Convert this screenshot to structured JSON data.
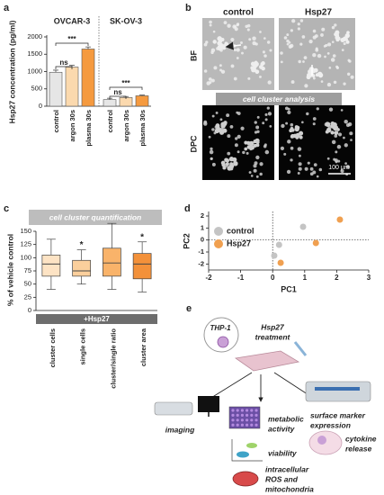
{
  "chart_data": [
    {
      "type": "bar",
      "panel": "a",
      "y_label": "Hsp27 concentration (pg/ml)",
      "groups": [
        "OVCAR-3",
        "SK-OV-3"
      ],
      "categories": [
        "control",
        "argon 30s",
        "plasma 30s",
        "control",
        "argon 30s",
        "plasma 30s"
      ],
      "values": [
        980,
        1130,
        1650,
        190,
        250,
        300
      ],
      "errors": [
        60,
        50,
        60,
        40,
        30,
        20
      ],
      "colors": [
        "#e6e6e6",
        "#fbd9ae",
        "#f59a3f",
        "#e6e6e6",
        "#fbd9ae",
        "#f59a3f"
      ],
      "annotations": [
        "ns",
        "***",
        "ns",
        "***"
      ],
      "ylim": [
        0,
        2000
      ],
      "yticks": [
        0,
        500,
        1000,
        1500,
        2000
      ]
    },
    {
      "type": "box",
      "panel": "c",
      "banner": "cell cluster quantification",
      "y_label": "% of vehicle control",
      "treatment_label": "+Hsp27",
      "categories": [
        "cluster cells",
        "single cells",
        "cluster/single ratio",
        "cluster area"
      ],
      "values": [
        {
          "min": 40,
          "q1": 65,
          "median": 88,
          "q3": 105,
          "max": 135
        },
        {
          "min": 50,
          "q1": 65,
          "median": 75,
          "q3": 95,
          "max": 115
        },
        {
          "min": 40,
          "q1": 65,
          "median": 90,
          "q3": 118,
          "max": 165
        },
        {
          "min": 35,
          "q1": 60,
          "median": 88,
          "q3": 108,
          "max": 130
        }
      ],
      "colors": [
        "#fde3c4",
        "#fbcf9c",
        "#f9b36a",
        "#f3913a"
      ],
      "annotations": [
        "*",
        "*"
      ],
      "ylim": [
        0,
        150
      ],
      "yticks": [
        0,
        25,
        50,
        75,
        100,
        125,
        150
      ]
    },
    {
      "type": "scatter",
      "panel": "d",
      "x_label": "PC1",
      "y_label": "PC2",
      "series": [
        {
          "name": "control",
          "color": "#c4c4c4",
          "x": [
            0.95,
            0.2,
            0.05
          ],
          "y": [
            1.1,
            -0.4,
            -1.3
          ]
        },
        {
          "name": "Hsp27",
          "color": "#f0a050",
          "x": [
            2.1,
            1.35,
            0.25
          ],
          "y": [
            1.7,
            -0.25,
            -1.9
          ]
        }
      ],
      "xlim": [
        -2,
        3
      ],
      "xticks": [
        -2,
        -1,
        0,
        1,
        2,
        3
      ],
      "ylim": [
        -2.5,
        2
      ],
      "yticks": [
        -2,
        -1,
        0,
        1,
        2
      ]
    }
  ],
  "panel_b": {
    "label": "b",
    "columns": [
      "control",
      "Hsp27"
    ],
    "rows": [
      "BF",
      "DPC"
    ],
    "banner": "cell cluster analysis",
    "scale_bar": "100 µm"
  },
  "panel_e": {
    "label": "e",
    "cell": "THP-1",
    "treatment": [
      "Hsp27",
      "treatment"
    ],
    "outputs": [
      [
        "imaging"
      ],
      [
        "metabolic",
        "activity"
      ],
      [
        "viability"
      ],
      [
        "intracellular",
        "ROS and",
        "mitochondria"
      ],
      [
        "surface marker",
        "expression"
      ],
      [
        "cytokine",
        "release"
      ]
    ]
  }
}
